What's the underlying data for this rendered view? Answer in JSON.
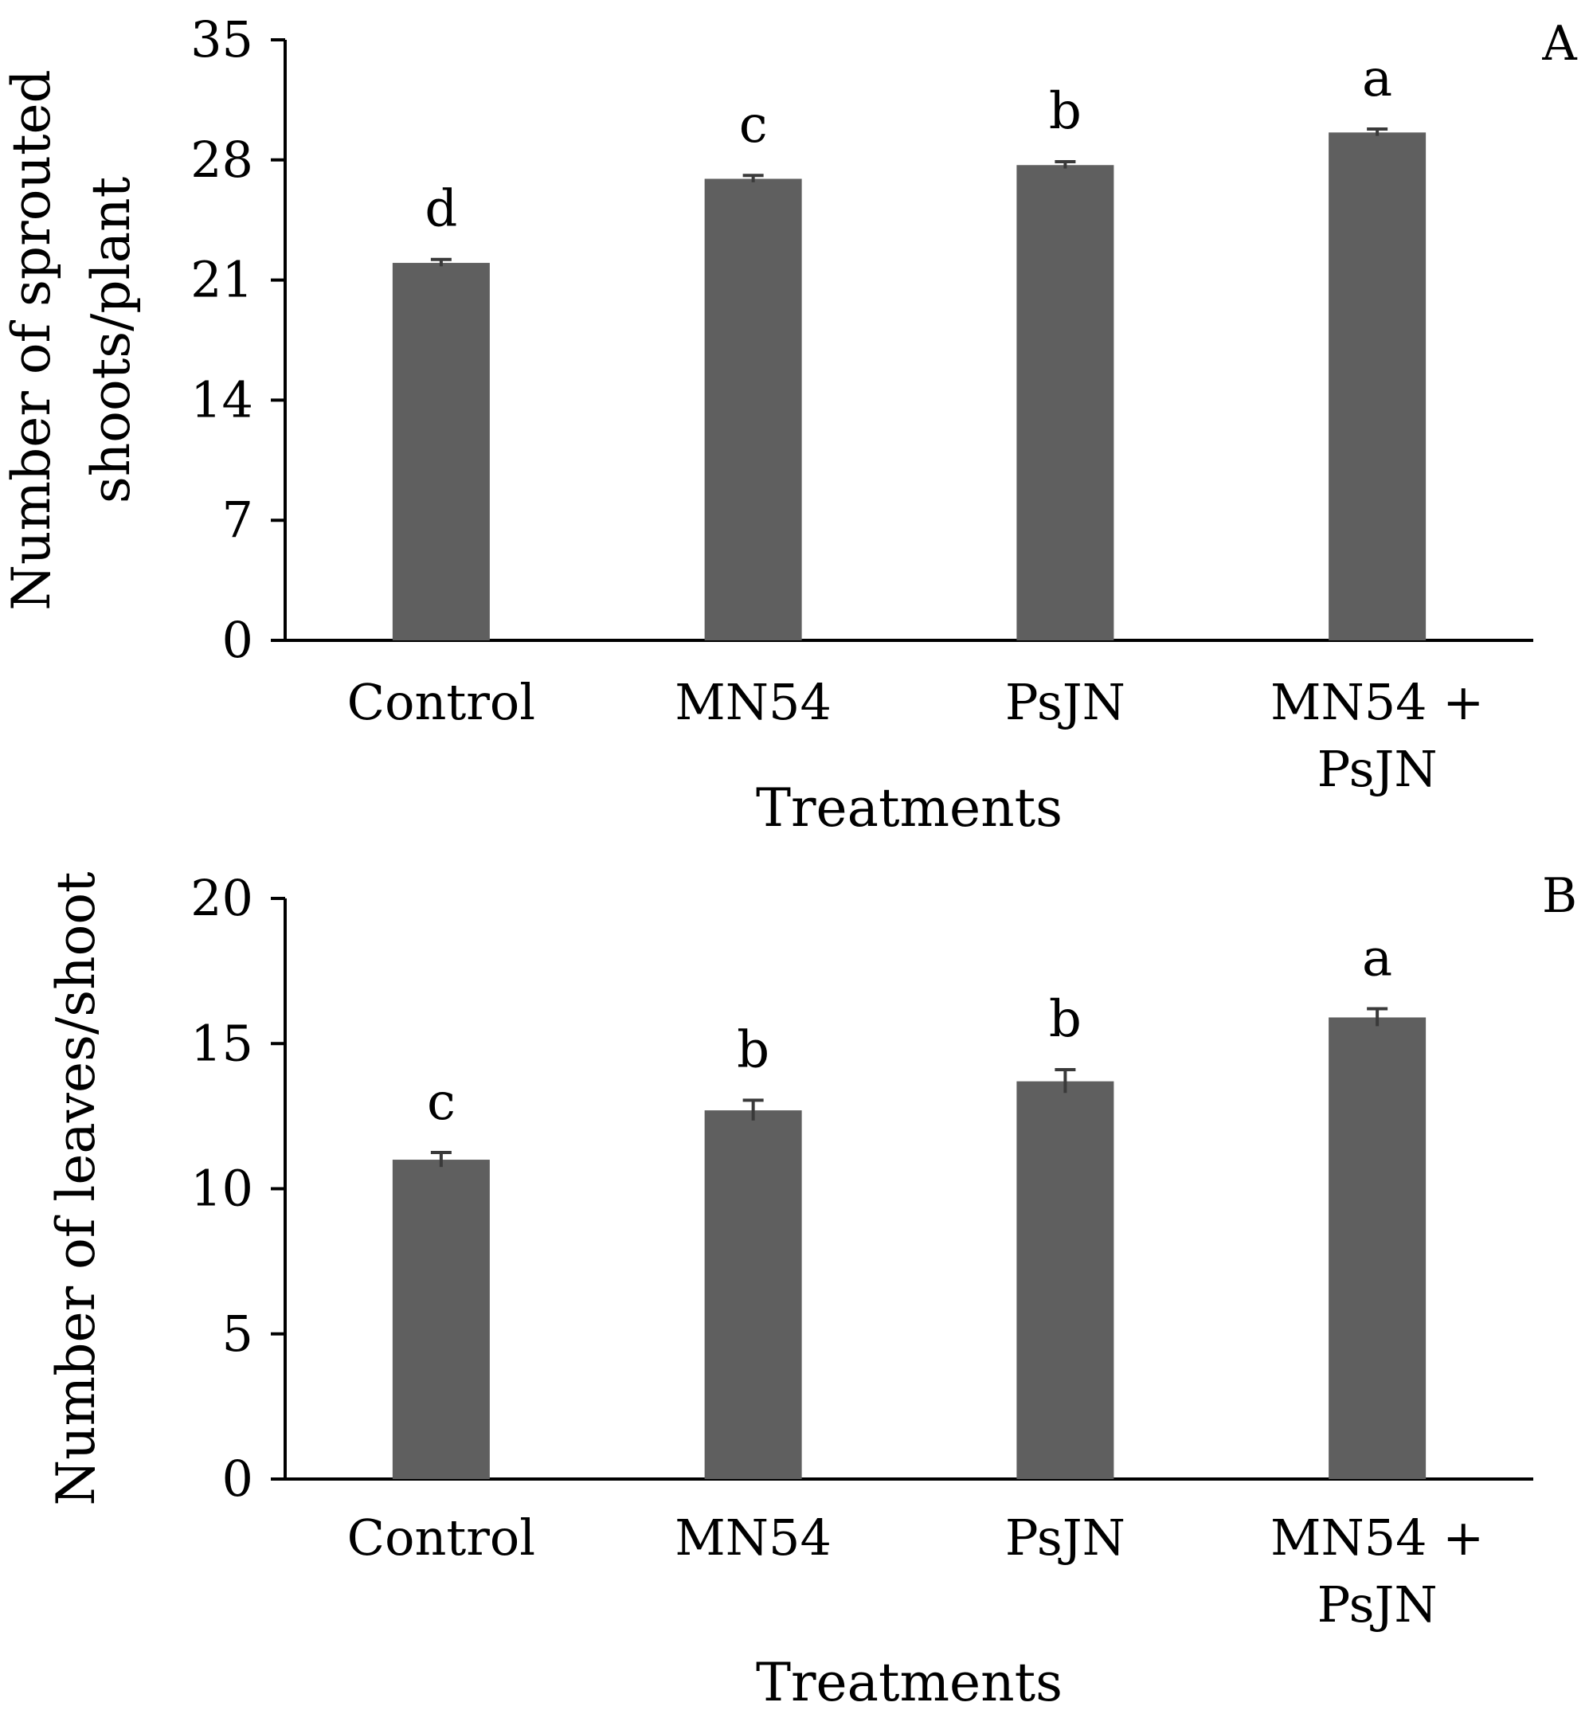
{
  "chart_data": [
    {
      "type": "bar",
      "panel_label": "A",
      "categories": [
        [
          "Control"
        ],
        [
          "MN54"
        ],
        [
          "PsJN"
        ],
        [
          "MN54 +",
          "PsJN"
        ]
      ],
      "values": [
        22.0,
        26.9,
        27.7,
        29.6
      ],
      "errors": [
        0.2,
        0.2,
        0.2,
        0.2
      ],
      "significance": [
        "d",
        "c",
        "b",
        "a"
      ],
      "xlabel": "Treatments",
      "ylabel": [
        "Number of sprouted",
        "shoots/plant"
      ],
      "ylim": [
        0,
        35
      ],
      "yticks": [
        0,
        7,
        14,
        21,
        28,
        35
      ],
      "bar_color": "#5f5f5f",
      "grid": false
    },
    {
      "type": "bar",
      "panel_label": "B",
      "categories": [
        [
          "Control"
        ],
        [
          "MN54"
        ],
        [
          "PsJN"
        ],
        [
          "MN54 +",
          "PsJN"
        ]
      ],
      "values": [
        11.0,
        12.7,
        13.7,
        15.9
      ],
      "errors": [
        0.25,
        0.35,
        0.4,
        0.3
      ],
      "significance": [
        "c",
        "b",
        "b",
        "a"
      ],
      "xlabel": "Treatments",
      "ylabel": [
        "Number of leaves/shoot"
      ],
      "ylim": [
        0,
        20
      ],
      "yticks": [
        0,
        5,
        10,
        15,
        20
      ],
      "bar_color": "#5f5f5f",
      "grid": false
    }
  ]
}
